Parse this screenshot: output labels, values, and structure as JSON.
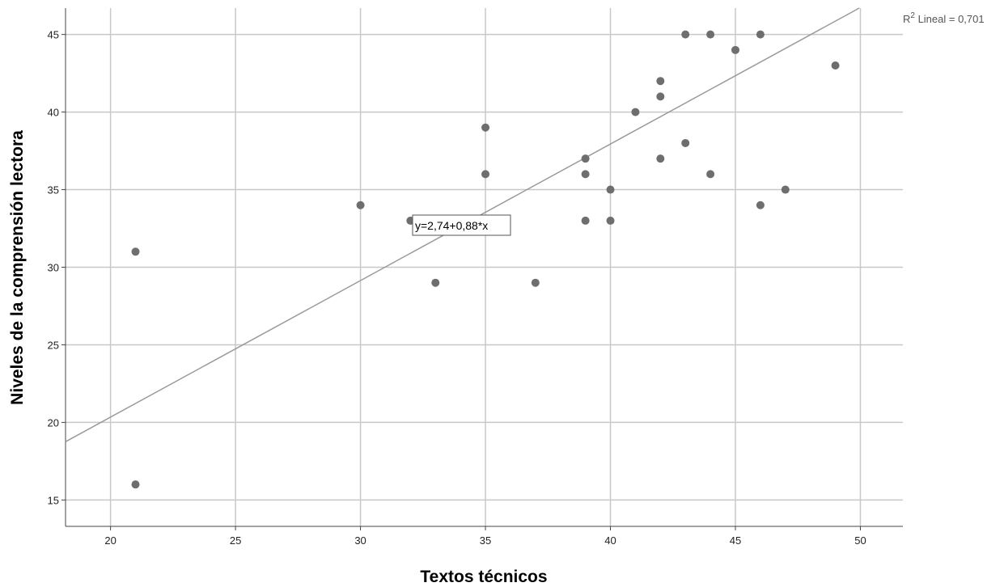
{
  "chart_data": {
    "type": "scatter",
    "title": "",
    "xlabel": "Textos técnicos",
    "ylabel": "Niveles de la comprensión lectora",
    "xlim": [
      18.2,
      51.7
    ],
    "ylim": [
      13.3,
      46.7
    ],
    "x_ticks": [
      20,
      25,
      30,
      35,
      40,
      45,
      50
    ],
    "y_ticks": [
      15,
      20,
      25,
      30,
      35,
      40,
      45
    ],
    "grid": true,
    "points": [
      {
        "x": 21,
        "y": 31
      },
      {
        "x": 21,
        "y": 16
      },
      {
        "x": 30,
        "y": 34
      },
      {
        "x": 32,
        "y": 33
      },
      {
        "x": 33,
        "y": 29
      },
      {
        "x": 35,
        "y": 39
      },
      {
        "x": 35,
        "y": 36
      },
      {
        "x": 37,
        "y": 29
      },
      {
        "x": 39,
        "y": 37
      },
      {
        "x": 39,
        "y": 36
      },
      {
        "x": 39,
        "y": 33
      },
      {
        "x": 40,
        "y": 35
      },
      {
        "x": 40,
        "y": 33
      },
      {
        "x": 41,
        "y": 40
      },
      {
        "x": 42,
        "y": 42
      },
      {
        "x": 42,
        "y": 41
      },
      {
        "x": 42,
        "y": 37
      },
      {
        "x": 43,
        "y": 45
      },
      {
        "x": 43,
        "y": 38
      },
      {
        "x": 44,
        "y": 45
      },
      {
        "x": 44,
        "y": 36
      },
      {
        "x": 45,
        "y": 44
      },
      {
        "x": 46,
        "y": 45
      },
      {
        "x": 46,
        "y": 34
      },
      {
        "x": 47,
        "y": 35
      },
      {
        "x": 49,
        "y": 43
      }
    ],
    "fit_line": {
      "intercept": 2.74,
      "slope": 0.88
    },
    "equation_label": "y=2,74+0,88*x",
    "r2_label": {
      "prefix": "R",
      "superscript": "2",
      "suffix": " Lineal = 0,701"
    },
    "colors": {
      "point": "#6e6e6e",
      "fit_line": "#9a9a9a",
      "grid": "#c8c8c8",
      "axis": "#444444"
    }
  }
}
